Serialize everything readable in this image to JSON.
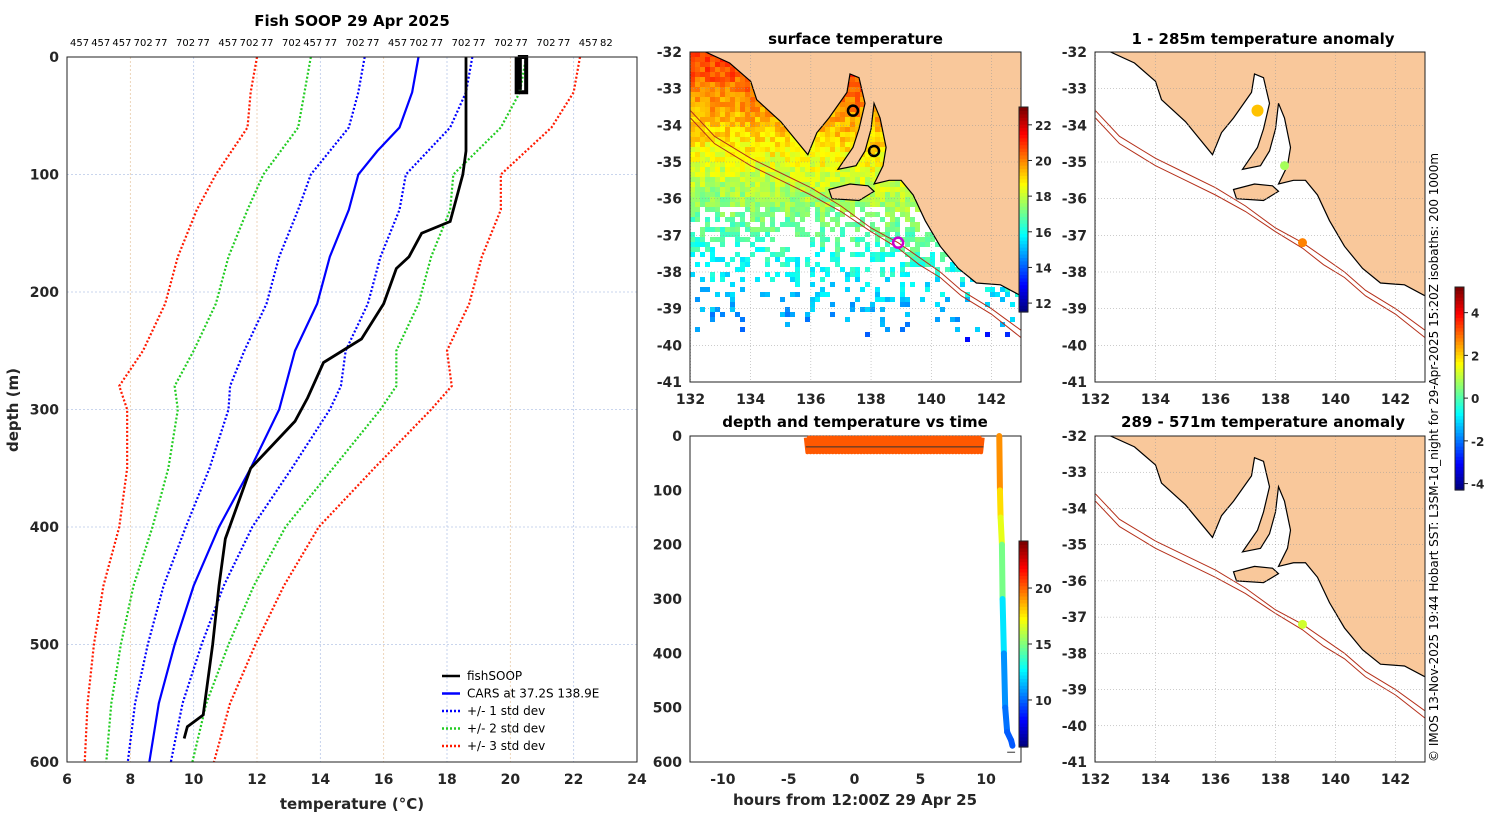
{
  "chart_data": [
    {
      "type": "line",
      "title": "Fish SOOP 29 Apr 2025",
      "top_labels": [
        "457",
        "457",
        "457",
        "702",
        "77",
        "702",
        "77",
        "457",
        "702",
        "77",
        "702",
        "457",
        "77",
        "702",
        "77",
        "457",
        "702",
        "77",
        "702",
        "77",
        "702",
        "77",
        "702",
        "77",
        "457",
        "82"
      ],
      "xlabel": "temperature (°C)",
      "ylabel": "depth (m)",
      "xlim": [
        6,
        24
      ],
      "ylim": [
        0,
        600
      ],
      "xticks": [
        6,
        8,
        10,
        12,
        14,
        16,
        18,
        20,
        22,
        24
      ],
      "yticks": [
        0,
        100,
        200,
        300,
        400,
        500,
        600
      ],
      "legend": [
        "fishSOOP",
        "CARS at 37.2S 138.9E",
        "+/- 1 std dev",
        "+/- 2 std dev",
        "+/- 3 std dev"
      ],
      "legend_position": "bottom-right",
      "series": [
        {
          "name": "fishSOOP",
          "color": "#000000",
          "points": [
            [
              18.6,
              0
            ],
            [
              18.6,
              80
            ],
            [
              18.5,
              100
            ],
            [
              18.3,
              120
            ],
            [
              18.1,
              140
            ],
            [
              17.2,
              150
            ],
            [
              16.8,
              170
            ],
            [
              16.4,
              180
            ],
            [
              16.0,
              210
            ],
            [
              15.3,
              240
            ],
            [
              14.7,
              250
            ],
            [
              14.1,
              260
            ],
            [
              13.6,
              290
            ],
            [
              13.2,
              310
            ],
            [
              12.5,
              330
            ],
            [
              11.8,
              350
            ],
            [
              11.4,
              380
            ],
            [
              11.0,
              410
            ],
            [
              10.8,
              450
            ],
            [
              10.6,
              500
            ],
            [
              10.4,
              540
            ],
            [
              10.3,
              560
            ],
            [
              9.8,
              570
            ],
            [
              9.7,
              580
            ]
          ]
        },
        {
          "name": "fishSOOP surface",
          "color": "#000000",
          "points": [
            [
              20.2,
              0
            ],
            [
              20.2,
              30
            ],
            [
              20.5,
              30
            ],
            [
              20.5,
              0
            ],
            [
              20.3,
              0
            ],
            [
              20.3,
              28
            ]
          ]
        },
        {
          "name": "CARS at 37.2S 138.9E",
          "color": "#0000ff",
          "points": [
            [
              17.1,
              0
            ],
            [
              16.9,
              30
            ],
            [
              16.5,
              60
            ],
            [
              15.8,
              80
            ],
            [
              15.2,
              100
            ],
            [
              14.9,
              130
            ],
            [
              14.3,
              170
            ],
            [
              13.9,
              210
            ],
            [
              13.2,
              250
            ],
            [
              12.7,
              300
            ],
            [
              11.8,
              350
            ],
            [
              10.8,
              400
            ],
            [
              10.0,
              450
            ],
            [
              9.4,
              500
            ],
            [
              8.9,
              550
            ],
            [
              8.6,
              600
            ]
          ]
        }
      ],
      "std_dev": {
        "depths": [
          0,
          30,
          60,
          100,
          130,
          170,
          210,
          250,
          280,
          300,
          350,
          400,
          450,
          500,
          550,
          600
        ],
        "values": [
          1.7,
          1.7,
          1.6,
          1.5,
          1.6,
          1.6,
          1.6,
          1.6,
          1.75,
          1.6,
          1.3,
          1.05,
          0.95,
          0.85,
          0.75,
          0.68
        ]
      },
      "std_colors": {
        "1": "#0000ff",
        "2": "#22cc22",
        "3": "#ff1a00"
      }
    },
    {
      "type": "heatmap",
      "title": "surface temperature",
      "xlim": [
        132,
        143
      ],
      "ylim": [
        -41,
        -32
      ],
      "xticks": [
        132,
        134,
        136,
        138,
        140,
        142
      ],
      "yticks": [
        -32,
        -33,
        -34,
        -35,
        -36,
        -37,
        -38,
        -39,
        -40,
        -41
      ],
      "colorbar": {
        "range": [
          11.5,
          23
        ],
        "ticks": [
          12,
          14,
          16,
          18,
          20,
          22
        ]
      },
      "markers": [
        {
          "lon": 137.4,
          "lat": -33.6,
          "color": "#000000"
        },
        {
          "lon": 138.1,
          "lat": -34.7,
          "color": "#000000"
        },
        {
          "lon": 138.9,
          "lat": -37.2,
          "color": "#cc00cc"
        }
      ]
    },
    {
      "type": "scatter",
      "title": "depth and temperature vs time",
      "xlabel": "hours from 12:00Z 29 Apr 25",
      "xlim": [
        -12.5,
        12.65
      ],
      "ylim": [
        0,
        600
      ],
      "xticks": [
        -10,
        -5,
        0,
        5,
        10
      ],
      "yticks": [
        0,
        100,
        200,
        300,
        400,
        500,
        600
      ],
      "colorbar": {
        "range": [
          5.8,
          24.2
        ],
        "ticks": [
          10,
          15,
          20
        ]
      },
      "surface_segment": {
        "start_h": -3.7,
        "end_h": 9.8,
        "depth_min": 0,
        "depth_max": 30,
        "temp": 20.3
      },
      "dive": [
        [
          11.0,
          0,
          20.3
        ],
        [
          11.05,
          100,
          18.3
        ],
        [
          11.1,
          150,
          17.5
        ],
        [
          11.2,
          200,
          16.2
        ],
        [
          11.25,
          300,
          13.5
        ],
        [
          11.35,
          400,
          11.0
        ],
        [
          11.45,
          500,
          10.5
        ],
        [
          11.6,
          545,
          9.8
        ],
        [
          11.9,
          560,
          9.7
        ],
        [
          12.0,
          570,
          9.7
        ]
      ]
    },
    {
      "type": "scatter",
      "title": "1 - 285m temperature anomaly",
      "xlim": [
        132,
        143
      ],
      "ylim": [
        -41,
        -32
      ],
      "xticks": [
        132,
        134,
        136,
        138,
        140,
        142
      ],
      "yticks": [
        -32,
        -33,
        -34,
        -35,
        -36,
        -37,
        -38,
        -39,
        -40,
        -41
      ],
      "points": [
        {
          "lon": 137.4,
          "lat": -33.6,
          "anomaly": 2.2
        },
        {
          "lon": 138.3,
          "lat": -35.1,
          "anomaly": 0.8
        },
        {
          "lon": 138.9,
          "lat": -37.2,
          "anomaly": 2.8
        }
      ]
    },
    {
      "type": "scatter",
      "title": "289 - 571m temperature anomaly",
      "xlim": [
        132,
        143
      ],
      "ylim": [
        -41,
        -32
      ],
      "xticks": [
        132,
        134,
        136,
        138,
        140,
        142
      ],
      "yticks": [
        -32,
        -33,
        -34,
        -35,
        -36,
        -37,
        -38,
        -39,
        -40,
        -41
      ],
      "points": [
        {
          "lon": 138.9,
          "lat": -37.2,
          "anomaly": 1.2
        }
      ],
      "colorbar": {
        "range": [
          -4.3,
          5.2
        ],
        "ticks": [
          -4,
          -2,
          0,
          2,
          4
        ]
      }
    }
  ],
  "coastline": {
    "mainland": [
      [
        131.9,
        -31.9
      ],
      [
        132.5,
        -32.0
      ],
      [
        133.3,
        -32.3
      ],
      [
        134.0,
        -32.8
      ],
      [
        134.2,
        -33.3
      ],
      [
        135.0,
        -33.9
      ],
      [
        135.5,
        -34.4
      ],
      [
        135.9,
        -34.8
      ],
      [
        136.2,
        -34.2
      ],
      [
        136.6,
        -33.8
      ],
      [
        137.2,
        -33.1
      ],
      [
        137.3,
        -32.6
      ],
      [
        137.6,
        -32.7
      ],
      [
        137.8,
        -33.4
      ],
      [
        137.6,
        -34.1
      ],
      [
        137.4,
        -34.6
      ],
      [
        136.9,
        -35.2
      ],
      [
        137.5,
        -35.1
      ],
      [
        137.8,
        -34.7
      ],
      [
        138.0,
        -34.1
      ],
      [
        138.1,
        -33.4
      ],
      [
        138.3,
        -33.8
      ],
      [
        138.5,
        -34.6
      ],
      [
        138.4,
        -35.1
      ],
      [
        138.1,
        -35.6
      ],
      [
        138.6,
        -35.5
      ],
      [
        139.0,
        -35.5
      ],
      [
        139.4,
        -35.9
      ],
      [
        139.8,
        -36.6
      ],
      [
        140.3,
        -37.3
      ],
      [
        140.9,
        -37.9
      ],
      [
        141.5,
        -38.3
      ],
      [
        142.3,
        -38.35
      ],
      [
        143.1,
        -38.7
      ],
      [
        143.2,
        -31.9
      ]
    ],
    "kangaroo_island": [
      [
        136.6,
        -35.75
      ],
      [
        137.3,
        -35.6
      ],
      [
        137.9,
        -35.65
      ],
      [
        138.1,
        -35.8
      ],
      [
        137.6,
        -36.05
      ],
      [
        136.7,
        -36.0
      ]
    ]
  },
  "isobaths": {
    "label_values": [
      "200",
      "1000m"
    ],
    "depth_200": [
      [
        132.0,
        -33.6
      ],
      [
        132.8,
        -34.3
      ],
      [
        134.0,
        -34.9
      ],
      [
        135.0,
        -35.3
      ],
      [
        136.0,
        -35.7
      ],
      [
        137.0,
        -36.2
      ],
      [
        138.0,
        -36.8
      ],
      [
        138.9,
        -37.2
      ],
      [
        139.6,
        -37.6
      ],
      [
        140.3,
        -38.0
      ],
      [
        141.0,
        -38.5
      ],
      [
        142.0,
        -39.0
      ],
      [
        143.0,
        -39.6
      ]
    ],
    "depth_1000": [
      [
        132.0,
        -33.8
      ],
      [
        132.8,
        -34.5
      ],
      [
        134.0,
        -35.1
      ],
      [
        135.0,
        -35.5
      ],
      [
        136.0,
        -35.9
      ],
      [
        137.0,
        -36.35
      ],
      [
        138.0,
        -36.9
      ],
      [
        138.9,
        -37.35
      ],
      [
        139.6,
        -37.8
      ],
      [
        140.3,
        -38.15
      ],
      [
        141.0,
        -38.65
      ],
      [
        142.0,
        -39.15
      ],
      [
        143.0,
        -39.8
      ]
    ]
  },
  "colors": {
    "land": "#f9c89b",
    "isobath": "#b5301a",
    "track": "#cc33cc"
  },
  "credit": "© IMOS 13-Nov-2025 19:44 Hobart SST: L3SM-1d_night for 29-Apr-2025 15:20Z isobaths: 200  1000m"
}
